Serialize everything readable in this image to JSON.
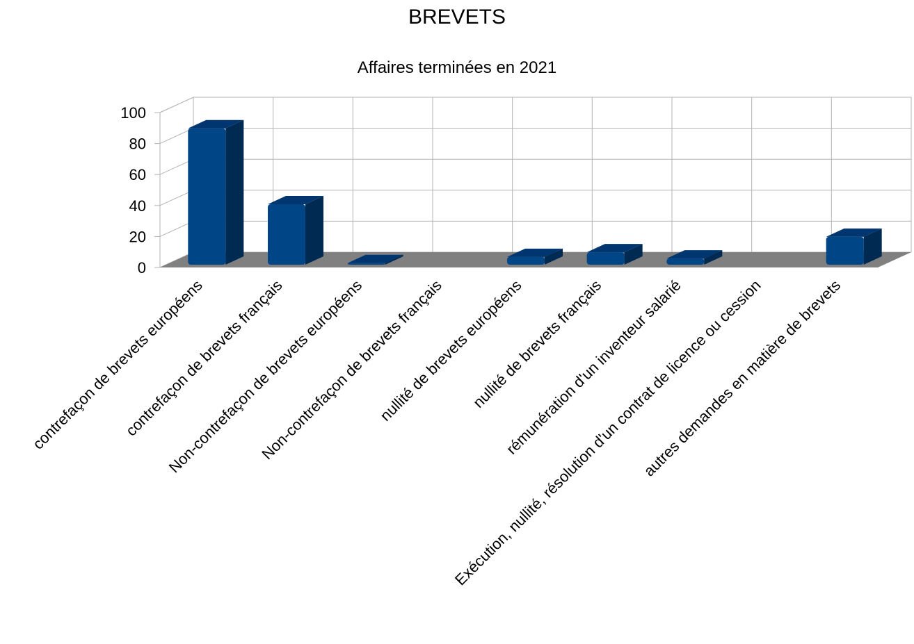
{
  "chart_data": {
    "type": "bar",
    "title": "BREVETS",
    "subtitle": "Affaires terminées en 2021",
    "categories": [
      "contrefaçon de brevets européens",
      "contrefaçon de brevets français",
      "Non-contrefaçon de brevets européens",
      "Non-contrefaçon de brevets français",
      "nullité de brevets européens",
      "nullité de brevets français",
      "rémunération d'un inventeur salarié",
      "Exécution, nullité, résolution d'un contrat de licence ou cession",
      "autres demandes en matière de brevets"
    ],
    "values": [
      88,
      39,
      1,
      0,
      5,
      8,
      4,
      0,
      18
    ],
    "ylim": [
      0,
      100
    ],
    "yticks": [
      "0",
      "20",
      "40",
      "60",
      "80",
      "100"
    ],
    "grid": true,
    "style": "3d",
    "colors": {
      "bar_front": "#004586",
      "bar_side": "#002a52",
      "bar_top": "#003670",
      "floor": "#808080",
      "grid": "#b3b3b3"
    }
  }
}
